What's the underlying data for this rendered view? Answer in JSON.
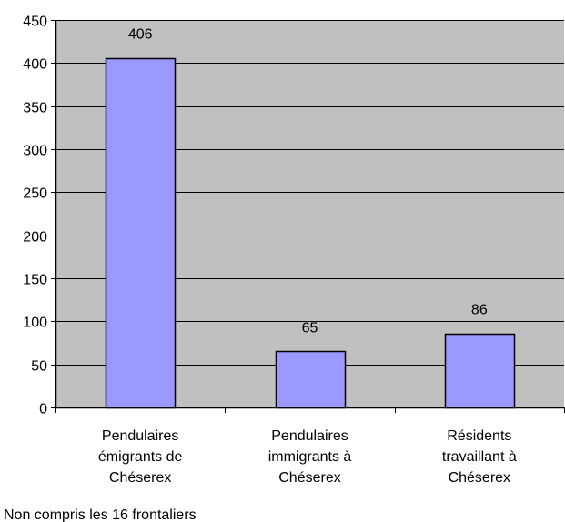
{
  "chart_data": {
    "type": "bar",
    "title": "",
    "xlabel": "",
    "ylabel": "",
    "ylim": [
      0,
      450
    ],
    "yticks": [
      0,
      50,
      100,
      150,
      200,
      250,
      300,
      350,
      400,
      450
    ],
    "grid": true,
    "categories": [
      [
        "Pendulaires",
        "émigrants de",
        "Chéserex"
      ],
      [
        "Pendulaires",
        "immigrants à",
        "Chéserex"
      ],
      [
        "Résidents",
        "travaillant à",
        "Chéserex"
      ]
    ],
    "values": [
      406,
      65,
      86
    ],
    "data_labels": [
      "406",
      "65",
      "86"
    ],
    "colors": {
      "plot_background": "#c0c0c0",
      "bar_fill": "#9999ff",
      "bar_stroke": "#000000",
      "gridline": "#000000"
    }
  },
  "footnote": "Non compris les 16 frontaliers"
}
